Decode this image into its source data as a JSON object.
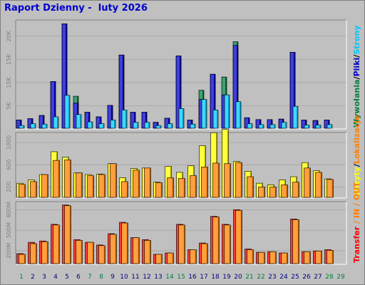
{
  "title": "Raport Dzienny -  luty 2026",
  "colors": {
    "background": "#c0c0c0",
    "panel": "#c0c0c0",
    "grid": "#a0a0a0",
    "hits": "#008040",
    "files": "#0000cc",
    "pages": "#00c8ff",
    "visits": "#ffff00",
    "sites": "#ff8000",
    "kbytes": "#ff0000",
    "in_out": "#ff8000",
    "weekend": "#008040",
    "weekday": "#000080",
    "slash": "#000000"
  },
  "chart_data": [
    {
      "type": "bar",
      "panel": "top",
      "ylim": [
        0,
        23500
      ],
      "yticks": [
        "20K",
        "15K",
        "10K",
        "5K"
      ],
      "ytick_values": [
        20000,
        15000,
        10000,
        5000
      ],
      "legend": [
        {
          "label": "Wywołania",
          "color": "#008040"
        },
        {
          "label": "Pliki",
          "color": "#0000cc"
        },
        {
          "label": "Strony",
          "color": "#00c8ff"
        }
      ],
      "separator": "/",
      "categories": [
        "1",
        "2",
        "3",
        "4",
        "5",
        "6",
        "7",
        "8",
        "9",
        "10",
        "11",
        "12",
        "13",
        "14",
        "15",
        "16",
        "17",
        "18",
        "19",
        "20",
        "21",
        "22",
        "23",
        "24",
        "25",
        "26",
        "27",
        "28",
        "29"
      ],
      "series": [
        {
          "name": "Wywołania",
          "values": [
            1800,
            2100,
            2800,
            10200,
            22800,
            7000,
            3500,
            2500,
            5000,
            16000,
            3500,
            3500,
            1300,
            2200,
            15800,
            1800,
            8300,
            11800,
            11200,
            18900,
            2300,
            1900,
            1900,
            2000,
            16600,
            1800,
            1700,
            1800,
            0
          ]
        },
        {
          "name": "Pliki",
          "values": [
            1800,
            2100,
            2800,
            10200,
            22800,
            5500,
            3500,
            2500,
            5000,
            16000,
            3500,
            3500,
            1300,
            2200,
            15800,
            1800,
            6300,
            11800,
            7300,
            18100,
            2300,
            1900,
            1900,
            2000,
            16600,
            1800,
            1700,
            1800,
            0
          ]
        },
        {
          "name": "Strony",
          "values": [
            600,
            1000,
            900,
            2500,
            7200,
            3000,
            1400,
            1000,
            1800,
            4000,
            1300,
            1300,
            600,
            1000,
            4300,
            900,
            6300,
            4000,
            7300,
            5800,
            1000,
            800,
            800,
            1300,
            4800,
            700,
            700,
            800,
            0
          ]
        }
      ]
    },
    {
      "type": "bar",
      "panel": "middle",
      "ylim": [
        0,
        1180
      ],
      "yticks": [
        "1000",
        "600",
        "200"
      ],
      "ytick_values": [
        1000,
        600,
        200
      ],
      "legend": [
        {
          "label": "Wizyty",
          "color": "#ffff00"
        },
        {
          "label": "Lokalizacje",
          "color": "#ff8000"
        }
      ],
      "separator": "/",
      "categories": [
        "1",
        "2",
        "3",
        "4",
        "5",
        "6",
        "7",
        "8",
        "9",
        "10",
        "11",
        "12",
        "13",
        "14",
        "15",
        "16",
        "17",
        "18",
        "19",
        "20",
        "21",
        "22",
        "23",
        "24",
        "25",
        "26",
        "27",
        "28",
        "29"
      ],
      "series": [
        {
          "name": "Wizyty",
          "values": [
            260,
            320,
            420,
            840,
            740,
            450,
            420,
            430,
            620,
            360,
            530,
            540,
            280,
            570,
            460,
            580,
            950,
            1190,
            1250,
            660,
            480,
            260,
            230,
            320,
            380,
            640,
            490,
            340,
            0
          ]
        },
        {
          "name": "Lokalizacje",
          "values": [
            240,
            290,
            420,
            680,
            690,
            450,
            400,
            420,
            620,
            290,
            500,
            540,
            270,
            360,
            350,
            400,
            560,
            630,
            620,
            640,
            380,
            190,
            190,
            230,
            280,
            540,
            460,
            330,
            0
          ]
        }
      ]
    },
    {
      "type": "bar",
      "panel": "bottom",
      "ylim": [
        0,
        920
      ],
      "yticks": [
        "800M",
        "500M",
        "200M"
      ],
      "ytick_values": [
        800,
        500,
        200
      ],
      "legend": [
        {
          "label": "Transfer",
          "color": "#ff0000"
        },
        {
          "label": "IN",
          "color": "#ff8000"
        },
        {
          "label": "OUT",
          "color": "#ff8000"
        }
      ],
      "separator": "/",
      "categories": [
        "1",
        "2",
        "3",
        "4",
        "5",
        "6",
        "7",
        "8",
        "9",
        "10",
        "11",
        "12",
        "13",
        "14",
        "15",
        "16",
        "17",
        "18",
        "19",
        "20",
        "21",
        "22",
        "23",
        "24",
        "25",
        "26",
        "27",
        "28",
        "29"
      ],
      "series": [
        {
          "name": "Transfer",
          "values": [
            150,
            320,
            340,
            590,
            880,
            360,
            320,
            280,
            450,
            620,
            390,
            360,
            140,
            160,
            590,
            210,
            310,
            710,
            590,
            810,
            220,
            170,
            180,
            160,
            670,
            180,
            190,
            210,
            0
          ]
        },
        {
          "name": "IN",
          "values": [
            140,
            300,
            330,
            580,
            870,
            350,
            320,
            270,
            440,
            610,
            390,
            350,
            140,
            160,
            580,
            210,
            300,
            700,
            580,
            800,
            210,
            170,
            180,
            160,
            660,
            180,
            190,
            200,
            0
          ]
        }
      ]
    }
  ],
  "weekend_days": [
    1,
    7,
    8,
    14,
    15,
    21,
    22,
    28,
    29
  ]
}
